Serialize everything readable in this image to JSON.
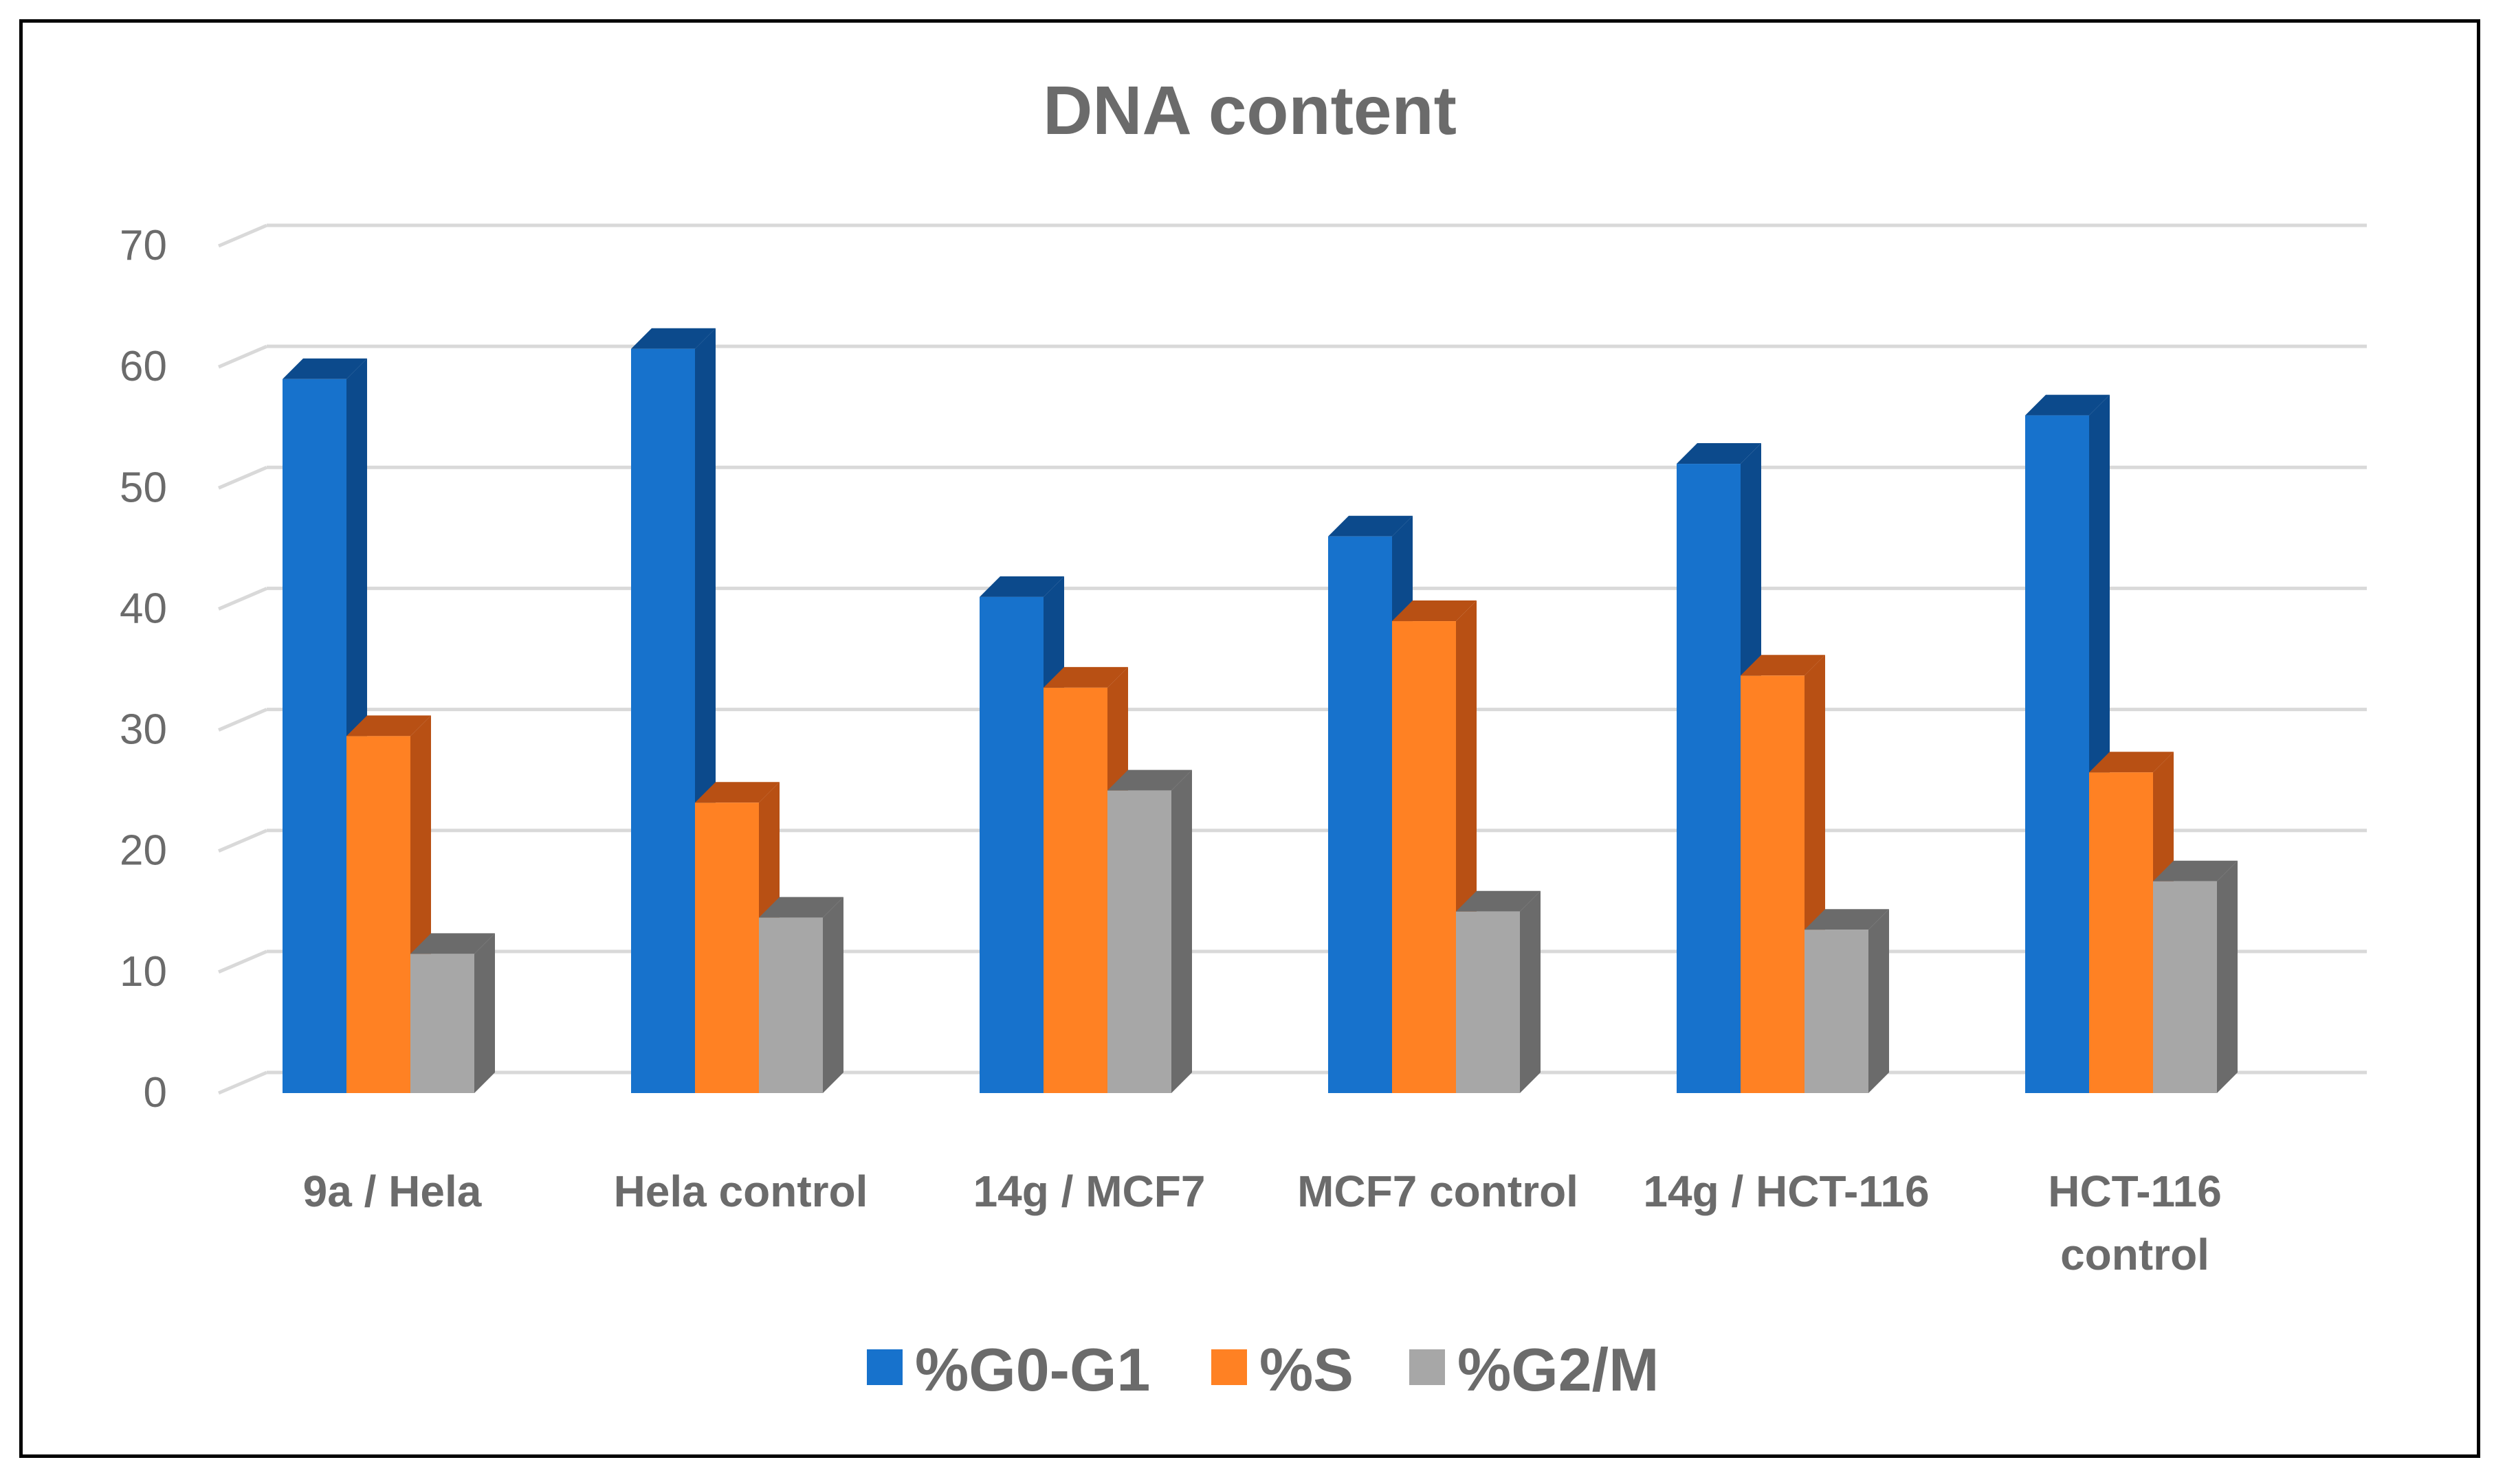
{
  "chart_data": {
    "type": "bar",
    "title": "DNA content",
    "xlabel": "",
    "ylabel": "",
    "ylim": [
      0,
      70
    ],
    "yticks": [
      0,
      10,
      20,
      30,
      40,
      50,
      60,
      70
    ],
    "grid": true,
    "legend_position": "bottom",
    "categories": [
      [
        "9a / Hela"
      ],
      [
        "Hela control"
      ],
      [
        "14g / MCF7"
      ],
      [
        "MCF7 control"
      ],
      [
        "14g / HCT-116"
      ],
      [
        "HCT-116",
        "control"
      ]
    ],
    "series": [
      {
        "name": "%G0-G1",
        "color": "#1772CC",
        "side": "#0C4A8C",
        "values": [
          59,
          61.5,
          41,
          46,
          52,
          56
        ]
      },
      {
        "name": "%S",
        "color": "#FF8123",
        "side": "#B85014",
        "values": [
          29.5,
          24,
          33.5,
          39,
          34.5,
          26.5
        ]
      },
      {
        "name": "%G2/M",
        "color": "#A7A7A7",
        "side": "#6B6B6B",
        "values": [
          11.5,
          14.5,
          25,
          15,
          13.5,
          17.5
        ]
      }
    ],
    "colors": {
      "grid": "#D9D9D9",
      "text": "#6B6B6B"
    }
  }
}
